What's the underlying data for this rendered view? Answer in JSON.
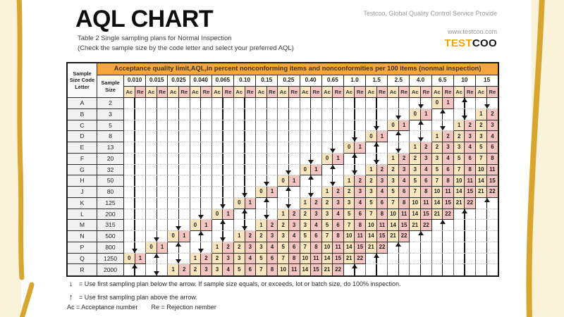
{
  "header": {
    "title": "AQL CHART",
    "subtitle1": "Table 2 Single sampling plans for Normal Inspection",
    "subtitle2": "(Check the sample size by the code letter and select your preferred AQL)",
    "right_line1": "Testcoo, Global Quality Control Service Provide",
    "right_line2": "www.testcoo.com",
    "brand": {
      "part1": "TEST",
      "part2": "COO"
    }
  },
  "colors": {
    "banner_orange": "#F5A73C",
    "ac_cream": "#FAE6BE",
    "re_pink": "#F3C5C0",
    "page_margin_cream": "#FBF2DA",
    "hand_drawn_gold": "#D8A62E",
    "brand_orange": "#F0A400"
  },
  "table": {
    "banner": "Acceptance quality limit,AQL,in percent nonconforming items and nonconformities per 100 items (nonmal inspection)",
    "col_headers": {
      "code_letter": "Sample\nSize Code\nLetter",
      "sample_size": "Sample\nSize",
      "ac": "Ac",
      "re": "Re"
    },
    "aql_levels": [
      "0.010",
      "0.015",
      "0.025",
      "0.040",
      "0.065",
      "0.10",
      "0.15",
      "0.25",
      "0.40",
      "0.65",
      "1.0",
      "1.5",
      "2.5",
      "4.0",
      "6.5",
      "10",
      "15"
    ],
    "cell_legend": "s = arrow shaft, hd = down-arrow head, hu = up-arrow head, a/r = Ac/Re values",
    "rows": [
      {
        "letter": "A",
        "size": "2",
        "cells": [
          "s",
          "s",
          "s",
          "s",
          "s",
          "s",
          "s",
          "s",
          "s",
          "s",
          "s",
          "s",
          "s",
          "hd",
          "0/1",
          "hu",
          "hd"
        ]
      },
      {
        "letter": "B",
        "size": "3",
        "cells": [
          "s",
          "s",
          "s",
          "s",
          "s",
          "s",
          "s",
          "s",
          "s",
          "s",
          "s",
          "s",
          "hd",
          "0/1",
          "hu",
          "hd",
          "1/2"
        ]
      },
      {
        "letter": "C",
        "size": "5",
        "cells": [
          "s",
          "s",
          "s",
          "s",
          "s",
          "s",
          "s",
          "s",
          "s",
          "s",
          "s",
          "hd",
          "0/1",
          "hu",
          "hd",
          "1/2",
          "2/3"
        ]
      },
      {
        "letter": "D",
        "size": "8",
        "cells": [
          "s",
          "s",
          "s",
          "s",
          "s",
          "s",
          "s",
          "s",
          "s",
          "s",
          "hd",
          "0/1",
          "hu",
          "hd",
          "1/2",
          "2/3",
          "3/4"
        ]
      },
      {
        "letter": "E",
        "size": "13",
        "cells": [
          "s",
          "s",
          "s",
          "s",
          "s",
          "s",
          "s",
          "s",
          "s",
          "hd",
          "0/1",
          "hu",
          "hd",
          "1/2",
          "2/3",
          "3/4",
          "5/6"
        ]
      },
      {
        "letter": "F",
        "size": "20",
        "cells": [
          "s",
          "s",
          "s",
          "s",
          "s",
          "s",
          "s",
          "s",
          "hd",
          "0/1",
          "hu",
          "hd",
          "1/2",
          "2/3",
          "3/4",
          "5/6",
          "7/8"
        ]
      },
      {
        "letter": "G",
        "size": "32",
        "cells": [
          "s",
          "s",
          "s",
          "s",
          "s",
          "s",
          "s",
          "hd",
          "0/1",
          "hu",
          "hd",
          "1/2",
          "2/3",
          "3/4",
          "5/6",
          "7/8",
          "10/11"
        ]
      },
      {
        "letter": "H",
        "size": "50",
        "cells": [
          "s",
          "s",
          "s",
          "s",
          "s",
          "s",
          "hd",
          "0/1",
          "hu",
          "hd",
          "1/2",
          "2/3",
          "3/4",
          "5/6",
          "7/8",
          "10/11",
          "14/15"
        ]
      },
      {
        "letter": "J",
        "size": "80",
        "cells": [
          "s",
          "s",
          "s",
          "s",
          "s",
          "hd",
          "0/1",
          "hu",
          "hd",
          "1/2",
          "2/3",
          "3/4",
          "5/6",
          "7/8",
          "10/11",
          "14/15",
          "21/22"
        ]
      },
      {
        "letter": "K",
        "size": "125",
        "cells": [
          "s",
          "s",
          "s",
          "s",
          "hd",
          "0/1",
          "hu",
          "hd",
          "1/2",
          "2/3",
          "3/4",
          "5/6",
          "7/8",
          "10/11",
          "14/15",
          "21/22",
          "hu"
        ]
      },
      {
        "letter": "L",
        "size": "200",
        "cells": [
          "s",
          "s",
          "s",
          "hd",
          "0/1",
          "hu",
          "hd",
          "1/2",
          "2/3",
          "3/4",
          "5/6",
          "7/8",
          "10/11",
          "14/15",
          "21/22",
          "hu",
          "s"
        ]
      },
      {
        "letter": "M",
        "size": "315",
        "cells": [
          "s",
          "s",
          "hd",
          "0/1",
          "hu",
          "hd",
          "1/2",
          "2/3",
          "3/4",
          "5/6",
          "7/8",
          "10/11",
          "14/15",
          "21/22",
          "hu",
          "s",
          "s"
        ]
      },
      {
        "letter": "N",
        "size": "500",
        "cells": [
          "s",
          "hd",
          "0/1",
          "hu",
          "hd",
          "1/2",
          "2/3",
          "3/4",
          "5/6",
          "7/8",
          "10/11",
          "14/15",
          "21/22",
          "hu",
          "s",
          "s",
          "s"
        ]
      },
      {
        "letter": "P",
        "size": "800",
        "cells": [
          "hd",
          "0/1",
          "hu",
          "hd",
          "1/2",
          "2/3",
          "3/4",
          "5/6",
          "7/8",
          "10/11",
          "14/15",
          "21/22",
          "hu",
          "s",
          "s",
          "s",
          "s"
        ]
      },
      {
        "letter": "Q",
        "size": "1250",
        "cells": [
          "0/1",
          "hu",
          "hd",
          "1/2",
          "2/3",
          "3/4",
          "5/6",
          "7/8",
          "10/11",
          "14/15",
          "21/22",
          "hu",
          "s",
          "s",
          "s",
          "s",
          "s"
        ]
      },
      {
        "letter": "R",
        "size": "2000",
        "cells": [
          "hu",
          "hd",
          "1/2",
          "2/3",
          "3/4",
          "5/6",
          "7/8",
          "10/11",
          "14/15",
          "21/22",
          "hu",
          "s",
          "s",
          "s",
          "s",
          "s",
          "s"
        ]
      }
    ]
  },
  "legend": {
    "down_symbol": "↓",
    "down_text": "= Use first sampling plan below the arrow. If sample size equals, or exceeds, lot or batch size, do 100% inspection.",
    "up_symbol": "↑",
    "up_text": "= Use first sampling plan above the arrow.",
    "ac_text": "Ac = Acceptance number",
    "re_text": "Re = Rejection nember"
  }
}
